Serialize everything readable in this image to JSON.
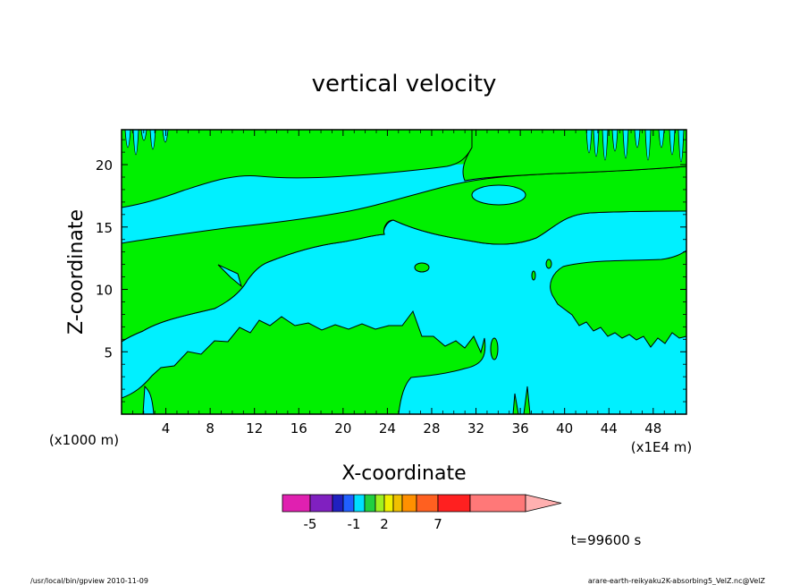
{
  "chart_data": {
    "type": "heatmap",
    "title": "vertical velocity",
    "xlabel": "X-coordinate",
    "ylabel": "Z-coordinate",
    "x_unit_left": "(x1000 m)",
    "x_unit_right": "(x1E4 m)",
    "xlim": [
      0,
      51
    ],
    "ylim": [
      0,
      22.8
    ],
    "x_ticks": [
      4,
      8,
      12,
      16,
      20,
      24,
      28,
      32,
      36,
      40,
      44,
      48
    ],
    "y_ticks": [
      5,
      10,
      15,
      20
    ],
    "colorbar": {
      "colors": [
        "#e020b0",
        "#8020c0",
        "#2020c0",
        "#2060ff",
        "#00e0ff",
        "#20d040",
        "#a0f020",
        "#f0f000",
        "#f0c000",
        "#ff9000",
        "#ff6020",
        "#ff2020",
        "#ff7878",
        "#ffb0b0"
      ],
      "labels": [
        "-5",
        "-1",
        "2",
        "7"
      ]
    },
    "regions": {
      "background_color": "#00f0ff",
      "region_color": "#00f000",
      "band_top": {
        "ztop_left": 16.7,
        "ztop_mid": 18.4,
        "ztop_right": 16.7,
        "zbot_left": 13.8,
        "zbot_mid": 15.5,
        "zbot_right": 14.0
      },
      "lower_lobe": {
        "x_range": [
          0,
          34
        ],
        "z_peak": 7.9
      },
      "right_lobe": {
        "x_range": [
          38,
          51
        ],
        "z_range": [
          6.2,
          12.6
        ]
      },
      "upper_right": {
        "x_range": [
          31,
          51
        ],
        "z_range": [
          17.5,
          22.8
        ]
      }
    },
    "time_label": "t=99600 s"
  },
  "footer": {
    "left": "/usr/local/bin/gpview  2010-11-09",
    "right": "arare-earth-reikyaku2K-absorbing5_VelZ.nc@VelZ"
  },
  "colors": {
    "cyan": "#00f0ff",
    "green": "#00f000"
  }
}
